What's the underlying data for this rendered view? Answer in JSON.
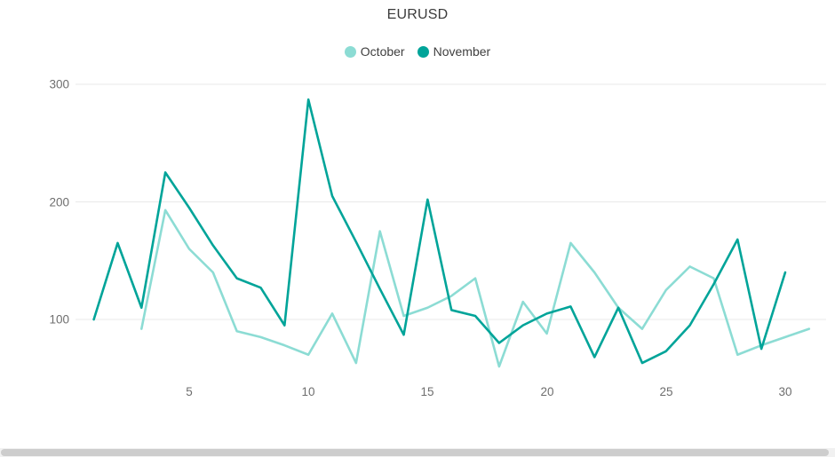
{
  "title": "EURUSD",
  "legend": {
    "items": [
      {
        "label": "October",
        "color": "#8CDCD4"
      },
      {
        "label": "November",
        "color": "#00A499"
      }
    ]
  },
  "chart_data": {
    "type": "line",
    "title": "EURUSD",
    "xlabel": "",
    "ylabel": "",
    "x_ticks": [
      5,
      10,
      15,
      20,
      25,
      30
    ],
    "y_ticks": [
      100,
      200,
      300
    ],
    "xlim": [
      1,
      31
    ],
    "ylim": [
      50,
      310
    ],
    "grid": "horizontal",
    "gridline_color": "#e9e9e9",
    "legend_position": "top-center",
    "series": [
      {
        "name": "October",
        "color": "#8CDCD4",
        "x": [
          3,
          4,
          5,
          6,
          7,
          8,
          9,
          10,
          11,
          12,
          13,
          14,
          15,
          16,
          17,
          18,
          19,
          20,
          21,
          22,
          23,
          24,
          25,
          26,
          27,
          28,
          29,
          30,
          31
        ],
        "values": [
          92,
          193,
          160,
          140,
          90,
          85,
          78,
          70,
          105,
          63,
          175,
          103,
          110,
          120,
          135,
          60,
          115,
          88,
          165,
          140,
          110,
          92,
          125,
          145,
          135,
          70,
          78,
          85,
          92
        ]
      },
      {
        "name": "November",
        "color": "#00A499",
        "x": [
          1,
          2,
          3,
          4,
          5,
          6,
          7,
          8,
          9,
          10,
          11,
          12,
          13,
          14,
          15,
          16,
          17,
          18,
          19,
          20,
          21,
          22,
          23,
          24,
          25,
          26,
          27,
          28,
          29,
          30
        ],
        "values": [
          100,
          165,
          110,
          225,
          195,
          163,
          135,
          127,
          95,
          287,
          205,
          166,
          126,
          87,
          202,
          108,
          103,
          80,
          95,
          105,
          111,
          68,
          110,
          63,
          73,
          95,
          130,
          168,
          75,
          140
        ]
      }
    ]
  }
}
